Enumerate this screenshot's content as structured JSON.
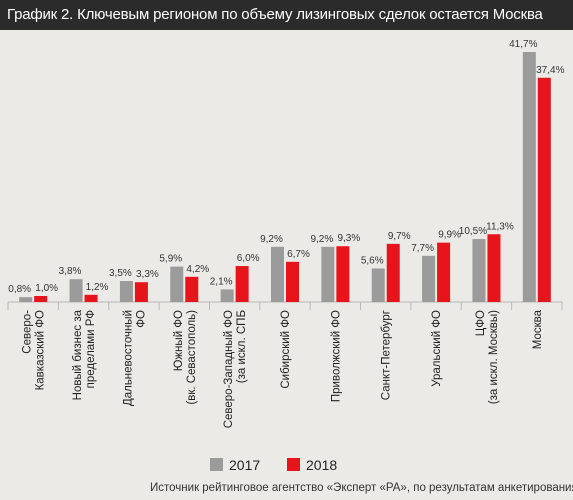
{
  "title": "График 2. Ключевым регионом по объему лизинговых сделок остается Москва",
  "source": "Источник рейтинговое агентство «Эксперт «РА», по результатам анкетирования ЛК",
  "colors": {
    "s2017": "#9b9b9b",
    "s2018": "#e8141c",
    "background": "#ebeae6",
    "title_bar": "#2b2b2b"
  },
  "chart_data": {
    "type": "bar",
    "categories": [
      [
        "Северо-",
        "Кавказский ФО"
      ],
      [
        "Новый бизнес за",
        "пределами РФ"
      ],
      [
        "Дальневосточный",
        "ФО"
      ],
      [
        "Южный ФО",
        "(вк. Севастополь)"
      ],
      [
        "Северо-Западный ФО",
        "(за искл. СПБ"
      ],
      [
        "Сибирский ФО"
      ],
      [
        "Приволжский ФО"
      ],
      [
        "Санкт-Петербург"
      ],
      [
        "Уральский ФО"
      ],
      [
        "ЦФО",
        "(за искл. Москвы)"
      ],
      [
        "Москва"
      ]
    ],
    "series": [
      {
        "name": "2017",
        "values": [
          0.8,
          3.8,
          3.5,
          5.9,
          2.1,
          9.2,
          9.2,
          5.6,
          7.7,
          10.5,
          41.7
        ],
        "labels": [
          "0,8%",
          "3,8%",
          "3,5%",
          "5,9%",
          "2,1%",
          "9,2%",
          "9,2%",
          "5,6%",
          "7,7%",
          "10,5%",
          "41,7%"
        ]
      },
      {
        "name": "2018",
        "values": [
          1.0,
          1.2,
          3.3,
          4.2,
          6.0,
          6.7,
          9.3,
          9.7,
          9.9,
          11.3,
          37.4
        ],
        "labels": [
          "1,0%",
          "1,2%",
          "3,3%",
          "4,2%",
          "6,0%",
          "6,7%",
          "9,3%",
          "9,7%",
          "9,9%",
          "11,3%",
          "37,4%"
        ]
      }
    ],
    "ylim": [
      0,
      41.7
    ],
    "grid": false,
    "legend_position": "bottom"
  }
}
